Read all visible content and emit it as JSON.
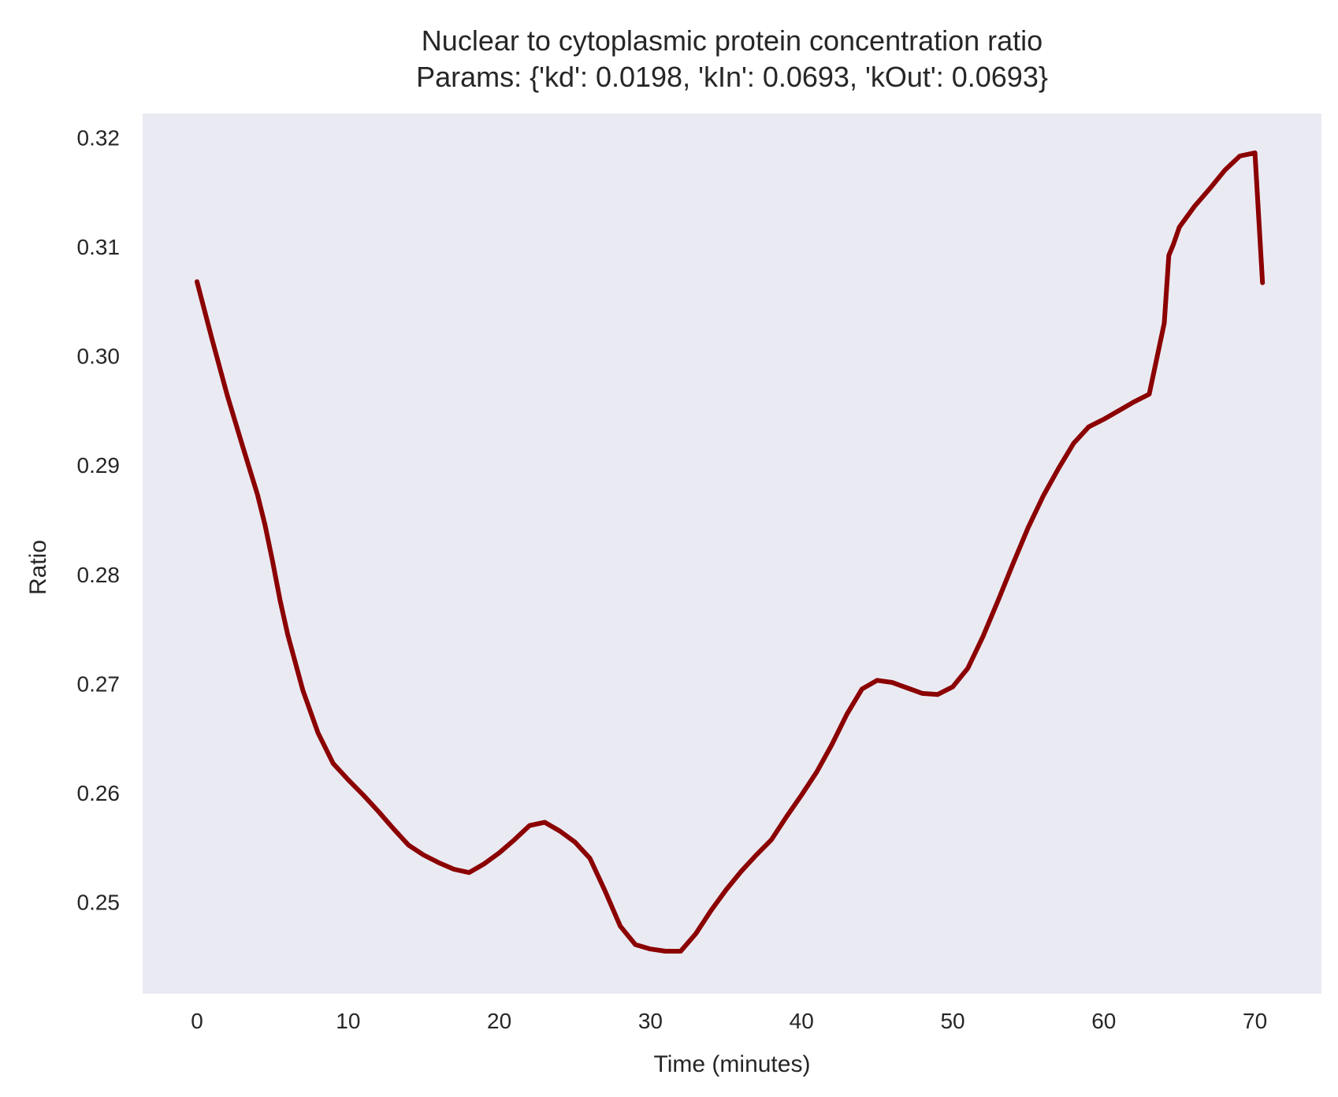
{
  "chart_data": {
    "type": "line",
    "title": "Nuclear to cytoplasmic protein concentration ratio",
    "subtitle": "Params: {'kd': 0.0198, 'kIn': 0.0693, 'kOut': 0.0693}",
    "xlabel": "Time (minutes)",
    "ylabel": "Ratio",
    "xlim": [
      -3.6,
      74.4
    ],
    "ylim": [
      0.2416,
      0.3222
    ],
    "xticks": [
      0,
      10,
      20,
      30,
      40,
      50,
      60,
      70
    ],
    "xtick_labels": [
      "0",
      "10",
      "20",
      "30",
      "40",
      "50",
      "60",
      "70"
    ],
    "yticks": [
      0.25,
      0.26,
      0.27,
      0.28,
      0.29,
      0.3,
      0.31,
      0.32
    ],
    "ytick_labels": [
      "0.25",
      "0.26",
      "0.27",
      "0.28",
      "0.29",
      "0.30",
      "0.31",
      "0.32"
    ],
    "grid": false,
    "background_color": "#EAEAF2",
    "series": [
      {
        "color": "#8B0000",
        "x": [
          0,
          1,
          2,
          3,
          4,
          4.5,
          5,
          5.5,
          6,
          7,
          8,
          9,
          10,
          11,
          12,
          13,
          14,
          15,
          16,
          17,
          18,
          19,
          20,
          21,
          22,
          23,
          24,
          25,
          26,
          27,
          28,
          29,
          30,
          31,
          32,
          33,
          34,
          35,
          36,
          37,
          38,
          39,
          40,
          41,
          42,
          43,
          44,
          45,
          46,
          47,
          48,
          49,
          50,
          51,
          52,
          53,
          54,
          55,
          56,
          57,
          58,
          59,
          60,
          61,
          62,
          63,
          64,
          64.3,
          64.6,
          65,
          66,
          67,
          68,
          69,
          70,
          70.5
        ],
        "y": [
          0.3068,
          0.3015,
          0.2964,
          0.2918,
          0.2873,
          0.2845,
          0.2812,
          0.2776,
          0.2745,
          0.2694,
          0.2655,
          0.2627,
          0.2612,
          0.2598,
          0.2583,
          0.2567,
          0.2552,
          0.2543,
          0.2536,
          0.253,
          0.2527,
          0.2535,
          0.2545,
          0.2557,
          0.257,
          0.2573,
          0.2565,
          0.2555,
          0.254,
          0.251,
          0.2478,
          0.2461,
          0.2457,
          0.2455,
          0.2455,
          0.2471,
          0.2492,
          0.2511,
          0.2528,
          0.2543,
          0.2557,
          0.2578,
          0.2598,
          0.2619,
          0.2644,
          0.2672,
          0.2695,
          0.2703,
          0.2701,
          0.2696,
          0.2691,
          0.269,
          0.2697,
          0.2714,
          0.2743,
          0.2776,
          0.281,
          0.2843,
          0.2872,
          0.2897,
          0.292,
          0.2935,
          0.2942,
          0.295,
          0.2958,
          0.2965,
          0.303,
          0.3092,
          0.3102,
          0.3118,
          0.3137,
          0.3153,
          0.317,
          0.3183,
          0.3186,
          0.3067
        ]
      }
    ]
  }
}
